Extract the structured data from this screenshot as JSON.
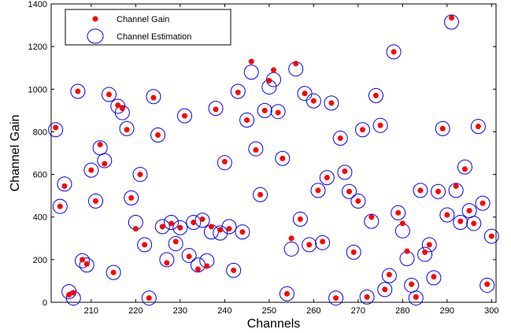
{
  "chart_data": {
    "type": "scatter",
    "title": "",
    "xlabel": "Channels",
    "ylabel": "Channel Gain",
    "xlim": [
      201,
      301
    ],
    "ylim": [
      0,
      1400
    ],
    "xticks": [
      210,
      220,
      230,
      240,
      250,
      260,
      270,
      280,
      290,
      300
    ],
    "yticks": [
      0,
      200,
      400,
      600,
      800,
      1000,
      1200,
      1400
    ],
    "grid": false,
    "legend_position": "top-left",
    "series": [
      {
        "name": "Channel Gain",
        "marker": "filled-dot",
        "color": "#ff0000",
        "x": [
          202,
          203,
          204,
          205,
          206,
          207,
          208,
          209,
          210,
          211,
          212,
          213,
          214,
          215,
          216,
          217,
          218,
          219,
          220,
          221,
          222,
          223,
          224,
          225,
          226,
          227,
          228,
          229,
          230,
          231,
          232,
          233,
          234,
          235,
          236,
          237,
          238,
          239,
          240,
          241,
          242,
          243,
          244,
          245,
          246,
          247,
          248,
          249,
          250,
          251,
          252,
          253,
          254,
          255,
          256,
          257,
          258,
          259,
          260,
          261,
          262,
          263,
          264,
          265,
          266,
          267,
          268,
          269,
          270,
          271,
          272,
          273,
          274,
          275,
          276,
          277,
          278,
          279,
          280,
          281,
          282,
          283,
          284,
          285,
          286,
          287,
          288,
          289,
          290,
          291,
          292,
          293,
          294,
          295,
          296,
          297,
          298,
          299,
          300
        ],
        "y": [
          820,
          450,
          545,
          35,
          45,
          990,
          200,
          180,
          620,
          475,
          740,
          650,
          975,
          140,
          925,
          910,
          810,
          490,
          345,
          600,
          270,
          20,
          960,
          785,
          355,
          185,
          370,
          285,
          350,
          875,
          215,
          375,
          155,
          390,
          170,
          355,
          905,
          340,
          660,
          345,
          150,
          985,
          330,
          855,
          1130,
          715,
          505,
          900,
          1040,
          1090,
          890,
          675,
          40,
          300,
          1120,
          390,
          980,
          270,
          945,
          525,
          285,
          585,
          935,
          20,
          770,
          615,
          520,
          235,
          475,
          810,
          25,
          400,
          970,
          830,
          60,
          130,
          1175,
          420,
          370,
          240,
          85,
          25,
          525,
          235,
          270,
          120,
          520,
          815,
          410,
          1335,
          545,
          380,
          625,
          430,
          370,
          825,
          465,
          85,
          310
        ]
      },
      {
        "name": "Channel Estimation",
        "marker": "open-circle",
        "color": "#0000ff",
        "x": [
          202,
          203,
          204,
          205,
          206,
          207,
          208,
          209,
          210,
          211,
          212,
          213,
          214,
          215,
          216,
          217,
          218,
          219,
          220,
          221,
          222,
          223,
          224,
          225,
          226,
          227,
          228,
          229,
          230,
          231,
          232,
          233,
          234,
          235,
          236,
          237,
          238,
          239,
          240,
          241,
          242,
          243,
          244,
          245,
          246,
          247,
          248,
          249,
          250,
          251,
          252,
          253,
          254,
          255,
          256,
          257,
          258,
          259,
          260,
          261,
          262,
          263,
          264,
          265,
          266,
          267,
          268,
          269,
          270,
          271,
          272,
          273,
          274,
          275,
          276,
          277,
          278,
          279,
          280,
          281,
          282,
          283,
          284,
          285,
          286,
          287,
          288,
          289,
          290,
          291,
          292,
          293,
          294,
          295,
          296,
          297,
          298,
          299,
          300
        ],
        "y": [
          810,
          450,
          555,
          50,
          20,
          990,
          195,
          175,
          620,
          475,
          725,
          665,
          975,
          140,
          920,
          890,
          815,
          490,
          375,
          600,
          270,
          20,
          965,
          785,
          355,
          200,
          375,
          275,
          350,
          875,
          220,
          375,
          175,
          385,
          195,
          330,
          910,
          325,
          655,
          355,
          150,
          990,
          330,
          855,
          1080,
          720,
          505,
          900,
          1010,
          1045,
          895,
          675,
          40,
          250,
          1095,
          390,
          980,
          270,
          945,
          525,
          280,
          585,
          935,
          20,
          770,
          610,
          520,
          235,
          475,
          810,
          25,
          380,
          970,
          830,
          60,
          125,
          1175,
          420,
          335,
          205,
          80,
          20,
          525,
          225,
          270,
          115,
          520,
          815,
          410,
          1315,
          525,
          375,
          635,
          430,
          370,
          825,
          465,
          80,
          310
        ]
      }
    ]
  }
}
